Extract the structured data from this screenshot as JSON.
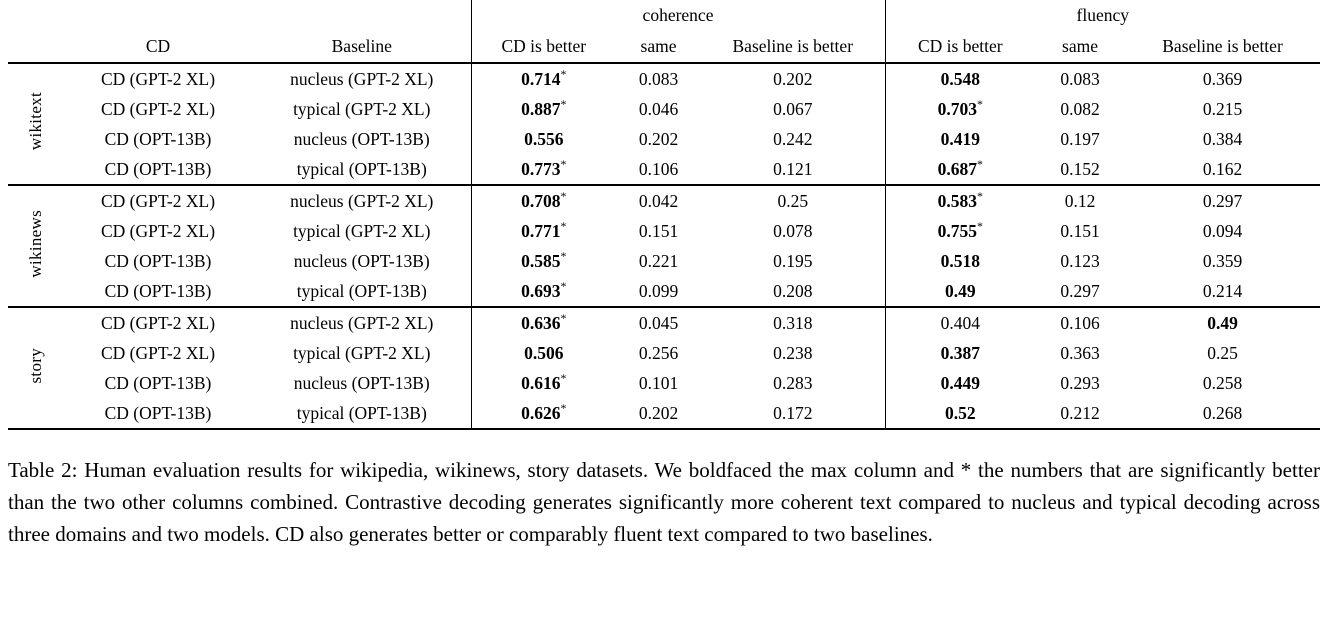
{
  "table": {
    "span_headers": {
      "coherence": "coherence",
      "fluency": "fluency"
    },
    "col_headers": {
      "cd": "CD",
      "baseline": "Baseline",
      "cd_better": "CD is better",
      "same": "same",
      "baseline_better": "Baseline is better"
    },
    "groups": [
      {
        "label": "wikitext",
        "rows": [
          {
            "cd": "CD (GPT-2 XL)",
            "baseline": "nucleus (GPT-2 XL)",
            "coherence": [
              {
                "v": "0.714",
                "bold": true,
                "star": true
              },
              {
                "v": "0.083"
              },
              {
                "v": "0.202"
              }
            ],
            "fluency": [
              {
                "v": "0.548",
                "bold": true
              },
              {
                "v": "0.083"
              },
              {
                "v": "0.369"
              }
            ]
          },
          {
            "cd": "CD (GPT-2 XL)",
            "baseline": "typical (GPT-2 XL)",
            "coherence": [
              {
                "v": "0.887",
                "bold": true,
                "star": true
              },
              {
                "v": "0.046"
              },
              {
                "v": "0.067"
              }
            ],
            "fluency": [
              {
                "v": "0.703",
                "bold": true,
                "star": true
              },
              {
                "v": "0.082"
              },
              {
                "v": "0.215"
              }
            ]
          },
          {
            "cd": "CD (OPT-13B)",
            "baseline": "nucleus (OPT-13B)",
            "coherence": [
              {
                "v": "0.556",
                "bold": true
              },
              {
                "v": "0.202"
              },
              {
                "v": "0.242"
              }
            ],
            "fluency": [
              {
                "v": "0.419",
                "bold": true
              },
              {
                "v": "0.197"
              },
              {
                "v": "0.384"
              }
            ]
          },
          {
            "cd": "CD (OPT-13B)",
            "baseline": "typical (OPT-13B)",
            "coherence": [
              {
                "v": "0.773",
                "bold": true,
                "star": true
              },
              {
                "v": "0.106"
              },
              {
                "v": "0.121"
              }
            ],
            "fluency": [
              {
                "v": "0.687",
                "bold": true,
                "star": true
              },
              {
                "v": "0.152"
              },
              {
                "v": "0.162"
              }
            ]
          }
        ]
      },
      {
        "label": "wikinews",
        "rows": [
          {
            "cd": "CD (GPT-2 XL)",
            "baseline": "nucleus (GPT-2 XL)",
            "coherence": [
              {
                "v": "0.708",
                "bold": true,
                "star": true
              },
              {
                "v": "0.042"
              },
              {
                "v": "0.25"
              }
            ],
            "fluency": [
              {
                "v": "0.583",
                "bold": true,
                "star": true
              },
              {
                "v": "0.12"
              },
              {
                "v": "0.297"
              }
            ]
          },
          {
            "cd": "CD (GPT-2 XL)",
            "baseline": "typical (GPT-2 XL)",
            "coherence": [
              {
                "v": "0.771",
                "bold": true,
                "star": true
              },
              {
                "v": "0.151"
              },
              {
                "v": "0.078"
              }
            ],
            "fluency": [
              {
                "v": "0.755",
                "bold": true,
                "star": true
              },
              {
                "v": "0.151"
              },
              {
                "v": "0.094"
              }
            ]
          },
          {
            "cd": "CD (OPT-13B)",
            "baseline": "nucleus (OPT-13B)",
            "coherence": [
              {
                "v": "0.585",
                "bold": true,
                "star": true
              },
              {
                "v": "0.221"
              },
              {
                "v": "0.195"
              }
            ],
            "fluency": [
              {
                "v": "0.518",
                "bold": true
              },
              {
                "v": "0.123"
              },
              {
                "v": "0.359"
              }
            ]
          },
          {
            "cd": "CD (OPT-13B)",
            "baseline": "typical (OPT-13B)",
            "coherence": [
              {
                "v": "0.693",
                "bold": true,
                "star": true
              },
              {
                "v": "0.099"
              },
              {
                "v": "0.208"
              }
            ],
            "fluency": [
              {
                "v": "0.49",
                "bold": true
              },
              {
                "v": "0.297"
              },
              {
                "v": "0.214"
              }
            ]
          }
        ]
      },
      {
        "label": "story",
        "rows": [
          {
            "cd": "CD (GPT-2 XL)",
            "baseline": "nucleus (GPT-2 XL)",
            "coherence": [
              {
                "v": "0.636",
                "bold": true,
                "star": true
              },
              {
                "v": "0.045"
              },
              {
                "v": "0.318"
              }
            ],
            "fluency": [
              {
                "v": "0.404"
              },
              {
                "v": "0.106"
              },
              {
                "v": "0.49",
                "bold": true
              }
            ]
          },
          {
            "cd": "CD (GPT-2 XL)",
            "baseline": "typical (GPT-2 XL)",
            "coherence": [
              {
                "v": "0.506",
                "bold": true
              },
              {
                "v": "0.256"
              },
              {
                "v": "0.238"
              }
            ],
            "fluency": [
              {
                "v": "0.387",
                "bold": true
              },
              {
                "v": "0.363"
              },
              {
                "v": "0.25"
              }
            ]
          },
          {
            "cd": "CD (OPT-13B)",
            "baseline": "nucleus (OPT-13B)",
            "coherence": [
              {
                "v": "0.616",
                "bold": true,
                "star": true
              },
              {
                "v": "0.101"
              },
              {
                "v": "0.283"
              }
            ],
            "fluency": [
              {
                "v": "0.449",
                "bold": true
              },
              {
                "v": "0.293"
              },
              {
                "v": "0.258"
              }
            ]
          },
          {
            "cd": "CD (OPT-13B)",
            "baseline": "typical (OPT-13B)",
            "coherence": [
              {
                "v": "0.626",
                "bold": true,
                "star": true
              },
              {
                "v": "0.202"
              },
              {
                "v": "0.172"
              }
            ],
            "fluency": [
              {
                "v": "0.52",
                "bold": true
              },
              {
                "v": "0.212"
              },
              {
                "v": "0.268"
              }
            ]
          }
        ]
      }
    ]
  },
  "caption": "Table 2: Human evaluation results for wikipedia, wikinews, story datasets. We boldfaced the max column and * the numbers that are significantly better than the two other columns combined. Contrastive decoding generates significantly more coherent text compared to nucleus and typical decoding across three domains and two models. CD also generates better or comparably fluent text compared to two baselines."
}
